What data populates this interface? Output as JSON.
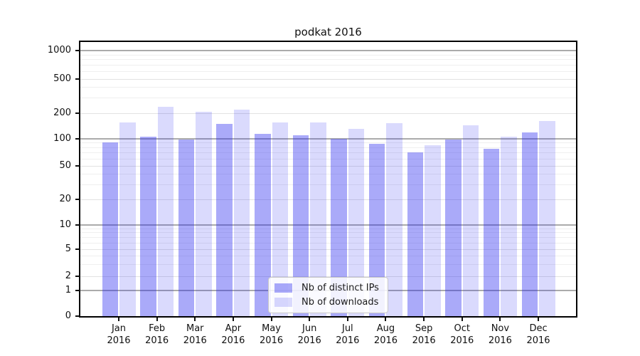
{
  "chart_data": {
    "type": "bar",
    "title": "podkat 2016",
    "categories": [
      "Jan",
      "Feb",
      "Mar",
      "Apr",
      "May",
      "Jun",
      "Jul",
      "Aug",
      "Sep",
      "Oct",
      "Nov",
      "Dec"
    ],
    "category_year": "2016",
    "series": [
      {
        "name": "Nb of distinct IPs",
        "color": "#2020f061",
        "values": [
          92,
          106,
          98,
          150,
          114,
          110,
          100,
          88,
          71,
          98,
          78,
          120
        ]
      },
      {
        "name": "Nb of downloads",
        "color": "#2020f02a",
        "values": [
          155,
          238,
          207,
          222,
          155,
          155,
          130,
          152,
          85,
          144,
          106,
          163
        ]
      }
    ],
    "yscale": "symlog",
    "ytick_labels": [
      "0",
      "1",
      "2",
      "5",
      "10",
      "20",
      "50",
      "100",
      "200",
      "500",
      "1000"
    ],
    "ytick_values": [
      0,
      1,
      2,
      5,
      10,
      20,
      50,
      100,
      200,
      500,
      1000
    ],
    "ylim": [
      0,
      1100
    ],
    "grid": true,
    "legend_position": "lower-center",
    "colors": {
      "ips_bar_on_white": "#aaaaf6",
      "downloads_bar_on_white": "#d9d9fb",
      "major_grid": "#ababab",
      "minor_grid": "#efefef",
      "axis": "#000000"
    }
  }
}
